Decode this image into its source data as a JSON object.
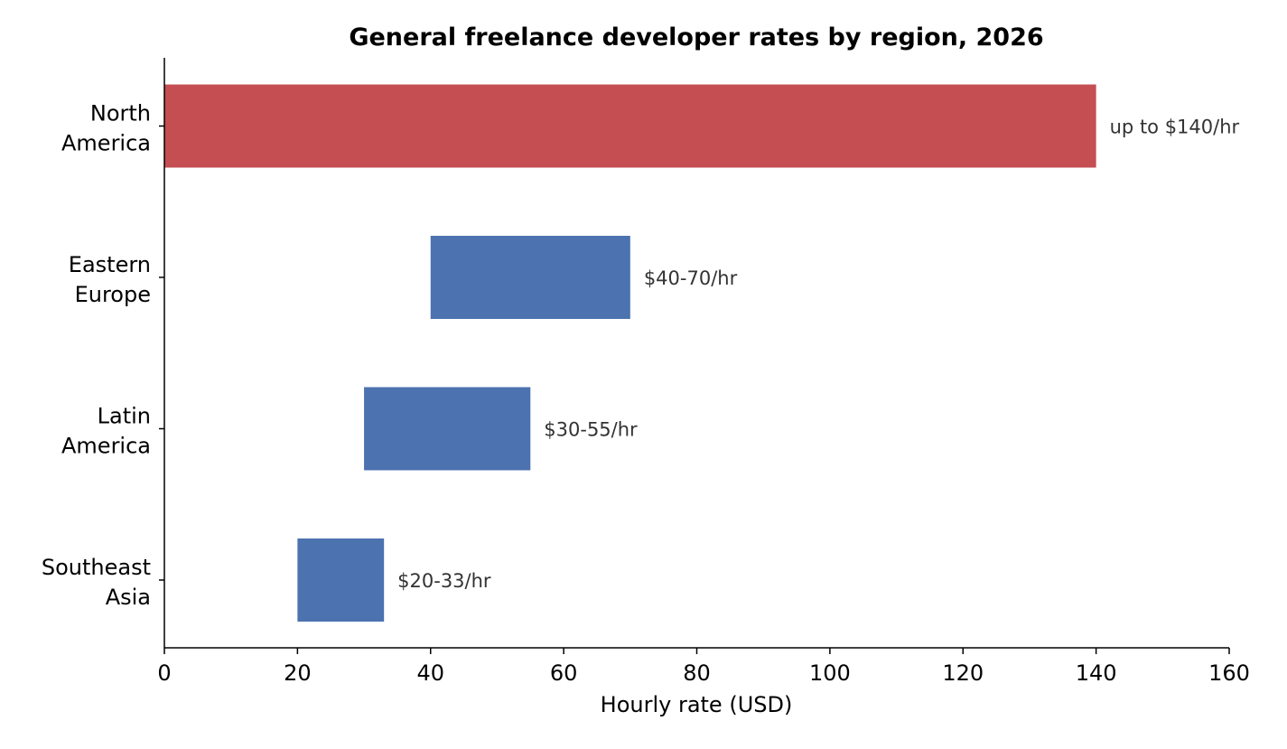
{
  "chart_data": {
    "type": "bar",
    "orientation": "horizontal",
    "title": "General freelance developer rates by region, 2026",
    "xlabel": "Hourly rate (USD)",
    "ylabel": "",
    "xlim": [
      0,
      160
    ],
    "xticks": [
      "0",
      "20",
      "40",
      "60",
      "80",
      "100",
      "120",
      "140",
      "160"
    ],
    "grid": false,
    "categories": [
      [
        "North",
        "America"
      ],
      [
        "Eastern",
        "Europe"
      ],
      [
        "Latin",
        "America"
      ],
      [
        "Southeast",
        "Asia"
      ]
    ],
    "bars": [
      {
        "start": 0,
        "end": 140,
        "label": "up to $140/hr",
        "color": "#c44e52"
      },
      {
        "start": 40,
        "end": 70,
        "label": "$40-70/hr",
        "color": "#4c72b0"
      },
      {
        "start": 30,
        "end": 55,
        "label": "$30-55/hr",
        "color": "#4c72b0"
      },
      {
        "start": 20,
        "end": 33,
        "label": "$20-33/hr",
        "color": "#4c72b0"
      }
    ]
  }
}
